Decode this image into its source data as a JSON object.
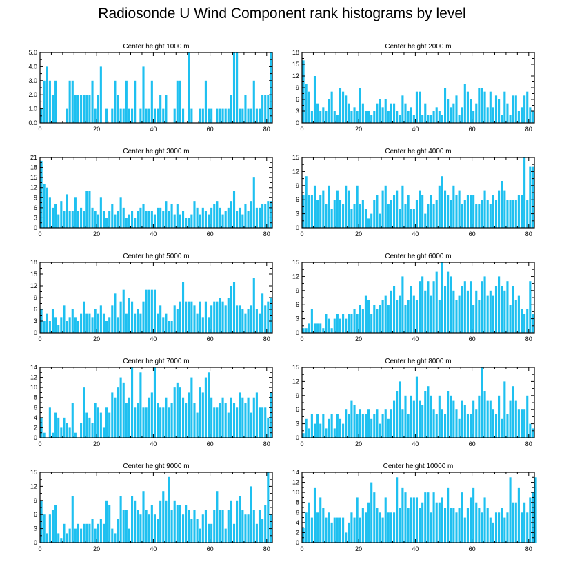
{
  "title": "Radiosonde U Wind Component rank histograms by level",
  "bar_color": "#1ec0f0",
  "chart_data": [
    {
      "type": "bar",
      "title": "Center height 1000 m",
      "xticks": [
        0,
        20,
        40,
        60,
        80
      ],
      "xlim": [
        0,
        82
      ],
      "yticks": [
        "0.0",
        "1.0",
        "2.0",
        "3.0",
        "4.0",
        "5.0"
      ],
      "ylim": [
        0,
        5
      ],
      "values": [
        1,
        3,
        4,
        3,
        2,
        3,
        0,
        0,
        0,
        1,
        3,
        3,
        2,
        2,
        2,
        2,
        2,
        2,
        3,
        1,
        2,
        4,
        0,
        1,
        0,
        1,
        3,
        2,
        1,
        1,
        3,
        1,
        1,
        3,
        0,
        1,
        4,
        1,
        1,
        3,
        1,
        1,
        2,
        1,
        2,
        0,
        0,
        1,
        3,
        3,
        1,
        0,
        5,
        1,
        0,
        0,
        1,
        1,
        3,
        1,
        1,
        0,
        1,
        1,
        1,
        1,
        1,
        2,
        5,
        5,
        1,
        1,
        2,
        1,
        1,
        3,
        1,
        1,
        2,
        2,
        2,
        5
      ]
    },
    {
      "type": "bar",
      "title": "Center height 2000 m",
      "xticks": [
        0,
        20,
        40,
        60,
        80
      ],
      "xlim": [
        0,
        82
      ],
      "yticks": [
        "0",
        "3",
        "6",
        "9",
        "12",
        "15",
        "18"
      ],
      "ylim": [
        0,
        18
      ],
      "values": [
        16,
        10,
        8,
        3,
        12,
        5,
        3,
        4,
        3,
        6,
        8,
        3,
        2,
        9,
        8,
        7,
        5,
        3,
        4,
        3,
        9,
        5,
        3,
        3,
        2,
        3,
        5,
        6,
        4,
        6,
        3,
        5,
        5,
        3,
        2,
        7,
        5,
        3,
        4,
        2,
        8,
        8,
        2,
        5,
        2,
        2,
        3,
        4,
        3,
        2,
        9,
        6,
        4,
        5,
        7,
        2,
        4,
        10,
        8,
        6,
        3,
        5,
        9,
        9,
        8,
        4,
        8,
        4,
        7,
        6,
        2,
        8,
        5,
        2,
        7,
        7,
        3,
        4,
        7,
        8,
        4,
        3
      ]
    },
    {
      "type": "bar",
      "title": "Center height 3000 m",
      "xticks": [
        0,
        20,
        40,
        60,
        80
      ],
      "xlim": [
        0,
        82
      ],
      "yticks": [
        "0",
        "3",
        "6",
        "9",
        "12",
        "15",
        "18",
        "21"
      ],
      "ylim": [
        0,
        21
      ],
      "values": [
        20,
        13,
        12,
        9,
        6,
        7,
        4,
        8,
        5,
        10,
        5,
        5,
        9,
        5,
        6,
        5,
        11,
        11,
        6,
        5,
        4,
        9,
        5,
        3,
        5,
        7,
        4,
        5,
        9,
        6,
        3,
        4,
        5,
        3,
        5,
        6,
        7,
        5,
        5,
        5,
        4,
        6,
        6,
        5,
        8,
        5,
        7,
        4,
        7,
        4,
        5,
        3,
        3,
        4,
        8,
        6,
        4,
        6,
        5,
        4,
        6,
        7,
        8,
        6,
        4,
        5,
        6,
        8,
        11,
        5,
        6,
        4,
        7,
        5,
        8,
        15,
        6,
        6,
        7,
        7,
        8,
        8
      ]
    },
    {
      "type": "bar",
      "title": "Center height 4000 m",
      "xticks": [
        0,
        20,
        40,
        60,
        80
      ],
      "xlim": [
        0,
        82
      ],
      "yticks": [
        "0",
        "3",
        "6",
        "9",
        "12",
        "15"
      ],
      "ylim": [
        0,
        15
      ],
      "values": [
        7,
        11,
        7,
        7,
        9,
        6,
        7,
        8,
        5,
        9,
        4,
        6,
        8,
        6,
        5,
        9,
        8,
        4,
        5,
        9,
        5,
        6,
        4,
        2,
        3,
        6,
        7,
        3,
        8,
        9,
        5,
        6,
        7,
        8,
        4,
        9,
        5,
        7,
        4,
        4,
        6,
        8,
        7,
        3,
        5,
        7,
        5,
        6,
        9,
        11,
        8,
        7,
        6,
        9,
        7,
        8,
        5,
        6,
        7,
        7,
        7,
        5,
        5,
        6,
        8,
        6,
        5,
        7,
        6,
        8,
        10,
        8,
        6,
        6,
        6,
        6,
        7,
        7,
        15,
        6,
        13,
        13
      ]
    },
    {
      "type": "bar",
      "title": "Center height 5000 m",
      "xticks": [
        0,
        20,
        40,
        60,
        80
      ],
      "xlim": [
        0,
        82
      ],
      "yticks": [
        "0",
        "3",
        "6",
        "9",
        "12",
        "15",
        "18"
      ],
      "ylim": [
        0,
        18
      ],
      "values": [
        6,
        3,
        5,
        3,
        6,
        4,
        2,
        4,
        7,
        3,
        4,
        6,
        4,
        3,
        5,
        8,
        5,
        5,
        4,
        6,
        5,
        7,
        5,
        3,
        4,
        7,
        10,
        4,
        8,
        11,
        5,
        9,
        8,
        5,
        6,
        5,
        8,
        11,
        11,
        11,
        11,
        5,
        7,
        4,
        5,
        3,
        3,
        7,
        6,
        8,
        13,
        8,
        8,
        8,
        7,
        5,
        8,
        4,
        8,
        4,
        7,
        8,
        8,
        9,
        8,
        7,
        9,
        12,
        13,
        7,
        7,
        6,
        5,
        6,
        7,
        14,
        6,
        5,
        10,
        7,
        8,
        9
      ]
    },
    {
      "type": "bar",
      "title": "Center height 6000 m",
      "xticks": [
        0,
        20,
        40,
        60,
        80
      ],
      "xlim": [
        0,
        82
      ],
      "yticks": [
        "0",
        "3",
        "6",
        "9",
        "12",
        "15"
      ],
      "ylim": [
        0,
        15
      ],
      "values": [
        1,
        1,
        2,
        5,
        2,
        2,
        2,
        1,
        4,
        3,
        1,
        3,
        4,
        3,
        4,
        3,
        4,
        4,
        5,
        4,
        6,
        5,
        8,
        7,
        4,
        6,
        5,
        6,
        7,
        8,
        6,
        9,
        10,
        7,
        8,
        12,
        6,
        7,
        10,
        8,
        7,
        11,
        12,
        9,
        11,
        8,
        11,
        13,
        7,
        15,
        10,
        13,
        12,
        9,
        7,
        8,
        10,
        11,
        9,
        11,
        6,
        9,
        7,
        11,
        12,
        8,
        9,
        8,
        10,
        12,
        10,
        9,
        11,
        6,
        10,
        7,
        8,
        5,
        4,
        5,
        11,
        4
      ]
    },
    {
      "type": "bar",
      "title": "Center height 7000 m",
      "xticks": [
        0,
        20,
        40,
        60,
        80
      ],
      "xlim": [
        0,
        82
      ],
      "yticks": [
        "0",
        "2",
        "4",
        "6",
        "8",
        "10",
        "12",
        "14"
      ],
      "ylim": [
        0,
        14
      ],
      "values": [
        4,
        1,
        0,
        6,
        1,
        5,
        4,
        2,
        4,
        3,
        2,
        7,
        1,
        0,
        3,
        10,
        5,
        4,
        3,
        7,
        6,
        5,
        2,
        6,
        5,
        9,
        8,
        10,
        12,
        11,
        7,
        8,
        14,
        6,
        7,
        13,
        6,
        6,
        8,
        9,
        14,
        7,
        6,
        6,
        8,
        6,
        7,
        10,
        11,
        10,
        8,
        7,
        9,
        12,
        7,
        5,
        10,
        9,
        12,
        13,
        8,
        6,
        6,
        7,
        8,
        7,
        5,
        8,
        7,
        6,
        9,
        8,
        7,
        8,
        5,
        8,
        9,
        6,
        6,
        6,
        4,
        9
      ]
    },
    {
      "type": "bar",
      "title": "Center height 8000 m",
      "xticks": [
        0,
        20,
        40,
        60,
        80
      ],
      "xlim": [
        0,
        82
      ],
      "yticks": [
        "0",
        "3",
        "6",
        "9",
        "12",
        "15"
      ],
      "ylim": [
        0,
        15
      ],
      "values": [
        1,
        4,
        2,
        5,
        3,
        5,
        3,
        5,
        2,
        4,
        5,
        2,
        5,
        4,
        3,
        6,
        5,
        8,
        7,
        5,
        6,
        5,
        5,
        6,
        4,
        5,
        6,
        3,
        5,
        6,
        4,
        6,
        8,
        10,
        12,
        6,
        9,
        5,
        9,
        8,
        13,
        8,
        7,
        10,
        11,
        9,
        6,
        5,
        9,
        6,
        5,
        10,
        9,
        8,
        6,
        4,
        8,
        7,
        5,
        5,
        8,
        6,
        9,
        15,
        10,
        8,
        8,
        6,
        5,
        9,
        4,
        12,
        5,
        8,
        11,
        8,
        6,
        6,
        6,
        9,
        3,
        2
      ]
    },
    {
      "type": "bar",
      "title": "Center height 9000 m",
      "xticks": [
        0,
        20,
        40,
        60,
        80
      ],
      "xlim": [
        0,
        82
      ],
      "yticks": [
        "0",
        "3",
        "6",
        "9",
        "12",
        "15"
      ],
      "ylim": [
        0,
        15
      ],
      "values": [
        9,
        6,
        2,
        6,
        7,
        8,
        2,
        1,
        4,
        2,
        3,
        10,
        3,
        4,
        3,
        4,
        4,
        4,
        5,
        3,
        4,
        5,
        4,
        9,
        8,
        3,
        2,
        5,
        10,
        7,
        7,
        3,
        10,
        9,
        7,
        6,
        11,
        7,
        6,
        8,
        6,
        5,
        9,
        11,
        9,
        14,
        7,
        9,
        8,
        8,
        6,
        8,
        7,
        5,
        7,
        5,
        3,
        6,
        7,
        4,
        4,
        7,
        11,
        7,
        7,
        3,
        7,
        9,
        4,
        9,
        10,
        7,
        6,
        6,
        12,
        7,
        4,
        7,
        5,
        8,
        15,
        6
      ]
    },
    {
      "type": "bar",
      "title": "Center height 10000 m",
      "xticks": [
        0,
        20,
        40,
        60,
        80
      ],
      "xlim": [
        0,
        82
      ],
      "yticks": [
        "0",
        "2",
        "4",
        "6",
        "8",
        "10",
        "12",
        "14"
      ],
      "ylim": [
        0,
        14
      ],
      "values": [
        3,
        6,
        8,
        5,
        11,
        6,
        9,
        7,
        5,
        6,
        4,
        5,
        5,
        5,
        5,
        2,
        4,
        6,
        5,
        9,
        5,
        7,
        6,
        8,
        12,
        10,
        7,
        6,
        5,
        9,
        6,
        6,
        6,
        13,
        7,
        11,
        10,
        7,
        9,
        9,
        9,
        7,
        8,
        10,
        10,
        6,
        10,
        8,
        8,
        9,
        7,
        11,
        7,
        7,
        6,
        7,
        10,
        5,
        7,
        9,
        11,
        8,
        7,
        6,
        9,
        7,
        5,
        4,
        6,
        6,
        7,
        5,
        6,
        13,
        8,
        8,
        11,
        6,
        8,
        6,
        9,
        10,
        13
      ]
    }
  ]
}
